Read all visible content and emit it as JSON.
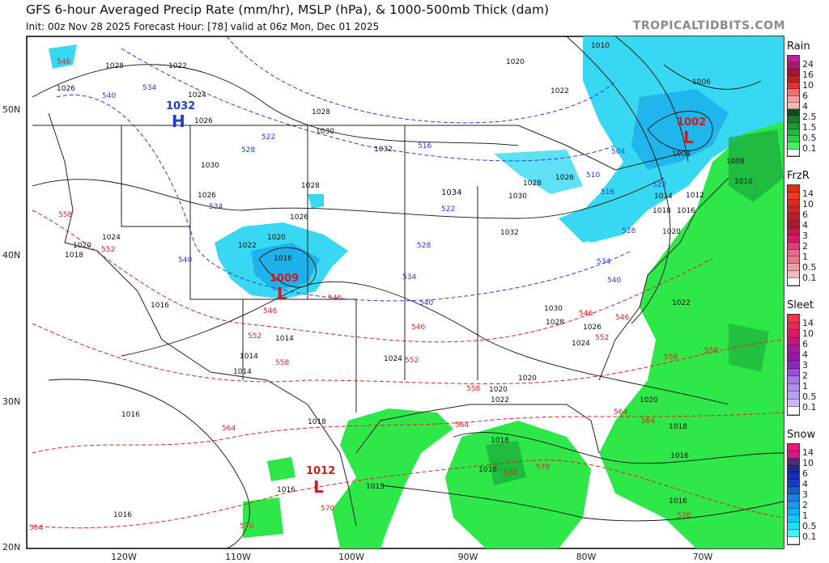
{
  "header": {
    "title": "GFS 6-hour Averaged Precip Rate (mm/hr), MSLP (hPa), & 1000-500mb Thick (dam)",
    "subtitle": "Init: 00z Nov 28 2025   Forecast Hour: [78]   valid at 06z Mon, Dec 01 2025",
    "brand": "TROPICALTIDBITS.COM"
  },
  "axes": {
    "lat_labels": [
      "50N",
      "40N",
      "30N",
      "20N"
    ],
    "lon_labels": [
      "120W",
      "110W",
      "100W",
      "90W",
      "80W",
      "70W"
    ]
  },
  "pressure_centers": [
    {
      "type": "H",
      "value": "1032",
      "color": "#1a3fd6"
    },
    {
      "type": "L",
      "value": "1009",
      "color": "#d01c1c"
    },
    {
      "type": "L",
      "value": "1002",
      "color": "#d01c1c"
    },
    {
      "type": "L",
      "value": "1012",
      "color": "#d01c1c"
    },
    {
      "type": "H",
      "value": "1034",
      "color": "#1a3fd6"
    }
  ],
  "isobar_labels": [
    "1028",
    "1022",
    "1026",
    "1024",
    "1028",
    "1026",
    "1030",
    "1032",
    "1030",
    "1026",
    "1028",
    "1026",
    "1024",
    "1020",
    "1018",
    "1016",
    "1022",
    "1020",
    "1016",
    "1014",
    "1014",
    "1014",
    "1024",
    "1030",
    "1028",
    "1026",
    "1024",
    "1032",
    "1028",
    "1026",
    "1030",
    "1022",
    "1020",
    "1016",
    "1018",
    "1016",
    "1013",
    "1016",
    "1016",
    "1010",
    "1020",
    "1022",
    "1006",
    "1004",
    "1008",
    "1010",
    "1012",
    "1014",
    "1016",
    "1018",
    "1020",
    "1022",
    "1020",
    "1018",
    "1016",
    "1016",
    "1018",
    "1020"
  ],
  "thickness_labels_blue": [
    "546",
    "534",
    "540",
    "522",
    "528",
    "534",
    "540",
    "516",
    "522",
    "528",
    "534",
    "540",
    "504",
    "510",
    "516",
    "522",
    "528",
    "534",
    "540"
  ],
  "thickness_labels_red": [
    "546",
    "558",
    "552",
    "546",
    "552",
    "558",
    "546",
    "552",
    "546",
    "552",
    "558",
    "558",
    "564",
    "564",
    "564",
    "570",
    "570",
    "564",
    "570",
    "570",
    "558",
    "564",
    "570",
    "546"
  ],
  "legend": {
    "rain": {
      "title": "Rain",
      "levels": [
        "24",
        "16",
        "10",
        "6",
        "4",
        "2.5",
        "1.5",
        "0.5",
        "0.1"
      ],
      "colors": [
        "#c41fa6",
        "#a81a6e",
        "#9b1a32",
        "#b8202a",
        "#e83030",
        "#f07070",
        "#f7a0a0",
        "#f4b8b8",
        "#0a4d1f",
        "#177a2a",
        "#199a30",
        "#20b83a",
        "#2dd045",
        "#48f060",
        "#ffffff"
      ]
    },
    "frzr": {
      "title": "FrzR",
      "levels": [
        "14",
        "10",
        "6",
        "4",
        "3",
        "2",
        "1",
        "0.5",
        "0.1"
      ],
      "colors": [
        "#e82a1a",
        "#f03a20",
        "#e02820",
        "#c82828",
        "#b82030",
        "#a81a30",
        "#c01a50",
        "#d81a6a",
        "#e0407a",
        "#e86a8a",
        "#e87a8a",
        "#e8a0a8",
        "#f4b8c0",
        "#ffffff"
      ]
    },
    "sleet": {
      "title": "Sleet",
      "levels": [
        "14",
        "10",
        "6",
        "4",
        "3",
        "2",
        "1",
        "0.5",
        "0.1"
      ],
      "colors": [
        "#e83a4a",
        "#e82a5a",
        "#d81a6a",
        "#c01a80",
        "#a8189a",
        "#9818a8",
        "#8a2ab8",
        "#9a50d8",
        "#a878e8",
        "#b090f0",
        "#b8a0f0",
        "#c8b8f4",
        "#ffffff"
      ]
    },
    "snow": {
      "title": "Snow",
      "levels": [
        "14",
        "10",
        "6",
        "4",
        "3",
        "2",
        "1",
        "0.5",
        "0.1"
      ],
      "colors": [
        "#e81a7a",
        "#d01a8a",
        "#4a3070",
        "#1a2a90",
        "#1030b8",
        "#1040c8",
        "#1860c0",
        "#1a80e0",
        "#1a98f0",
        "#10b0f8",
        "#10c8f8",
        "#20e0f8",
        "#40f4f8",
        "#ffffff"
      ]
    }
  }
}
